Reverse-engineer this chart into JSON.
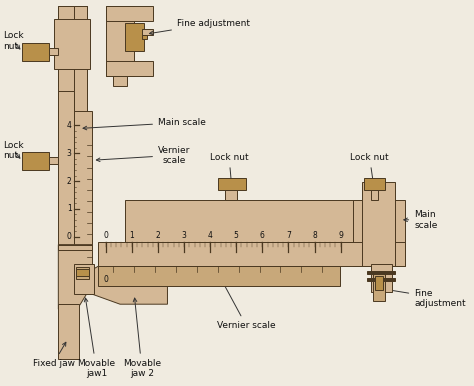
{
  "bg_color": "#f0ebe0",
  "part_color": "#d4b896",
  "part_color2": "#c8a87a",
  "part_edge": "#4a3820",
  "nut_color": "#b8904a",
  "labels": {
    "fine_adj_top": "Fine adjustment",
    "main_scale_vert": "Main scale",
    "vernier_scale_vert": "Vernier\nscale",
    "lock_nut_top_left": "Lock\nnut",
    "lock_nut_mid_left": "Lock\nnut",
    "lock_nut_mid1": "Lock nut",
    "lock_nut_mid2": "Lock nut",
    "main_scale_horiz": "Main\nscale",
    "fine_adj_bot": "Fine\nadjustment",
    "vernier_scale_horiz": "Vernier scale",
    "fixed_jaw": "Fixed jaw",
    "movable_jaw1": "Movable\njaw1",
    "movable_jaw2": "Movable\njaw 2"
  },
  "scale_ticks_vert": [
    0,
    1,
    2,
    3,
    4
  ],
  "scale_ticks_horiz": [
    0,
    1,
    2,
    3,
    4,
    5,
    6,
    7,
    8,
    9
  ],
  "vernier_ticks_horiz": 10,
  "figw": 4.74,
  "figh": 3.86,
  "dpi": 100
}
